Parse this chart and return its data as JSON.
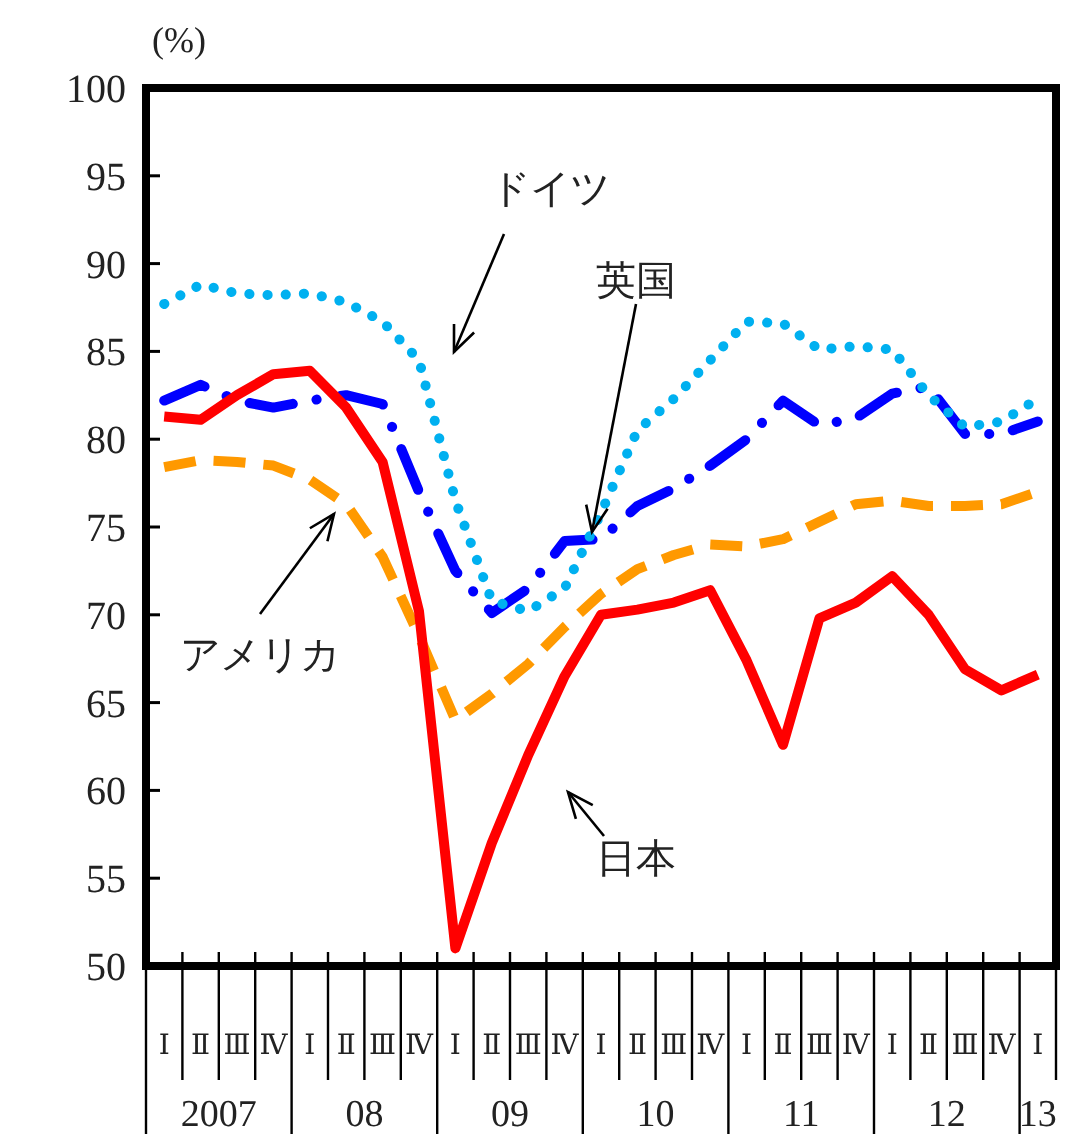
{
  "chart_data": {
    "type": "line",
    "ylabel": "(%)",
    "categories": [
      "Ⅰ",
      "Ⅱ",
      "Ⅲ",
      "Ⅳ",
      "Ⅰ",
      "Ⅱ",
      "Ⅲ",
      "Ⅳ",
      "Ⅰ",
      "Ⅱ",
      "Ⅲ",
      "Ⅳ",
      "Ⅰ",
      "Ⅱ",
      "Ⅲ",
      "Ⅳ",
      "Ⅰ",
      "Ⅱ",
      "Ⅲ",
      "Ⅳ",
      "Ⅰ",
      "Ⅱ",
      "Ⅲ",
      "Ⅳ",
      "Ⅰ"
    ],
    "annotations": [
      "2007",
      "08",
      "09",
      "10",
      "11",
      "12",
      "13"
    ],
    "ylim": [
      50,
      100
    ],
    "yticks": [
      50,
      55,
      60,
      65,
      70,
      75,
      80,
      85,
      90,
      95,
      100
    ],
    "grid": false,
    "legend": false,
    "marker": "none",
    "series": [
      {
        "name": "日本",
        "color": "#ff0000",
        "line_style": "solid",
        "values": [
          81.3,
          81.1,
          82.5,
          83.7,
          83.9,
          81.8,
          78.7,
          70.2,
          51.0,
          57.0,
          62.0,
          66.5,
          70.0,
          70.3,
          70.7,
          71.4,
          67.4,
          62.6,
          69.8,
          70.7,
          72.2,
          70.0,
          66.9,
          65.7,
          66.6
        ]
      },
      {
        "name": "アメリカ",
        "color": "#ff9900",
        "line_style": "dashed",
        "values": [
          78.4,
          78.8,
          78.7,
          78.5,
          77.7,
          76.3,
          73.3,
          68.8,
          64.0,
          65.5,
          67.2,
          69.3,
          71.2,
          72.6,
          73.4,
          74.0,
          73.9,
          74.3,
          75.3,
          76.3,
          76.5,
          76.2,
          76.2,
          76.3,
          77.0
        ]
      },
      {
        "name": "ドイツ",
        "color": "#00b0f0",
        "line_style": "dotted",
        "values": [
          87.7,
          88.8,
          88.3,
          88.2,
          88.3,
          87.8,
          86.7,
          84.5,
          76.5,
          70.8,
          70.2,
          71.5,
          75.8,
          80.5,
          82.3,
          84.5,
          86.7,
          86.6,
          85.1,
          85.3,
          85.1,
          82.5,
          80.7,
          81.0,
          82.3
        ]
      },
      {
        "name": "英国",
        "color": "#0000ff",
        "line_style": "dashdot",
        "values": [
          82.2,
          83.1,
          82.2,
          81.8,
          82.2,
          82.5,
          82.0,
          77.0,
          72.5,
          70.1,
          71.5,
          74.2,
          74.3,
          76.2,
          77.2,
          78.5,
          80.0,
          82.2,
          80.8,
          81.2,
          82.6,
          83.0,
          80.3,
          80.3,
          81.0
        ]
      }
    ]
  }
}
